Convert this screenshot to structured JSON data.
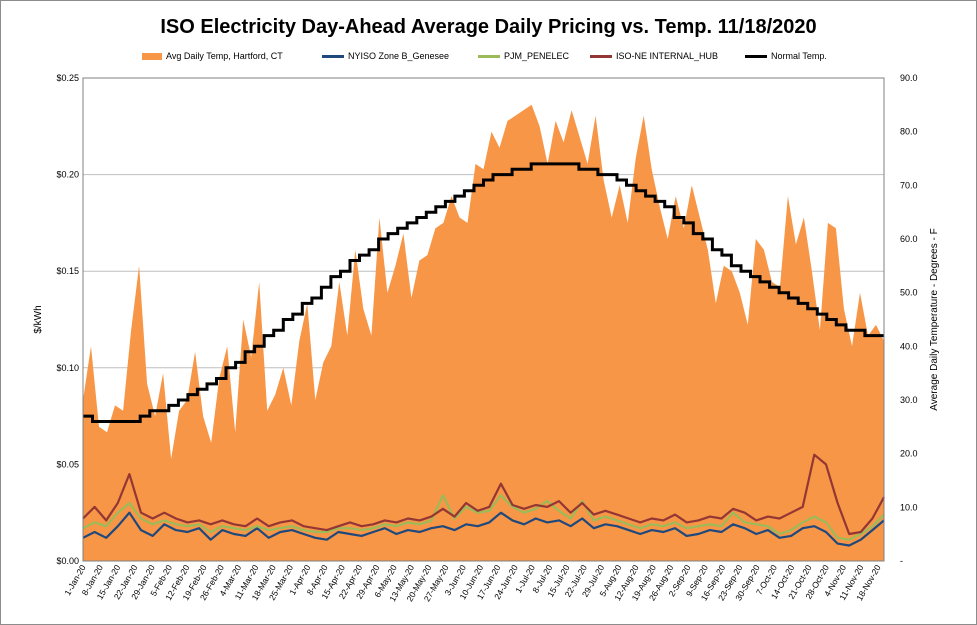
{
  "chart_data": {
    "type": "line",
    "title": "ISO Electricity Day-Ahead Average Daily Pricing vs. Temp. 11/18/2020",
    "ylabel_left": "$/kWh",
    "ylabel_right": "Average Daily Temperature - Degrees - F",
    "ylim_left": [
      0,
      0.25
    ],
    "ylim_right": [
      0,
      90
    ],
    "yticks_left": [
      "$0.00",
      "$0.05",
      "$0.10",
      "$0.15",
      "$0.20",
      "$0.25"
    ],
    "yticks_right": [
      "-",
      "10.0",
      "20.0",
      "30.0",
      "40.0",
      "50.0",
      "60.0",
      "70.0",
      "80.0",
      "90.0"
    ],
    "x_tick_labels": [
      "1-Jan-20",
      "8-Jan-20",
      "15-Jan-20",
      "22-Jan-20",
      "29-Jan-20",
      "5-Feb-20",
      "12-Feb-20",
      "19-Feb-20",
      "26-Feb-20",
      "4-Mar-20",
      "11-Mar-20",
      "18-Mar-20",
      "25-Mar-20",
      "1-Apr-20",
      "8-Apr-20",
      "15-Apr-20",
      "22-Apr-20",
      "29-Apr-20",
      "6-May-20",
      "13-May-20",
      "20-May-20",
      "27-May-20",
      "3-Jun-20",
      "10-Jun-20",
      "17-Jun-20",
      "24-Jun-20",
      "1-Jul-20",
      "8-Jul-20",
      "15-Jul-20",
      "22-Jul-20",
      "29-Jul-20",
      "5-Aug-20",
      "12-Aug-20",
      "19-Aug-20",
      "26-Aug-20",
      "2-Sep-20",
      "9-Sep-20",
      "16-Sep-20",
      "23-Sep-20",
      "30-Sep-20",
      "7-Oct-20",
      "14-Oct-20",
      "21-Oct-20",
      "28-Oct-20",
      "4-Nov-20",
      "11-Nov-20",
      "18-Nov-20"
    ],
    "grid": true,
    "legend_position": "top",
    "series": [
      {
        "name": "Avg Daily Temp, Hartford, CT",
        "kind": "area",
        "axis": "right",
        "color": "#f79646",
        "values": [
          30,
          40,
          25,
          24,
          29,
          28,
          43,
          55,
          33,
          27,
          35,
          19,
          28,
          30,
          39,
          27,
          22,
          34,
          40,
          24,
          45,
          38,
          52,
          28,
          31,
          36,
          29,
          41,
          48,
          30,
          37,
          40,
          52,
          42,
          58,
          47,
          42,
          64,
          50,
          55,
          61,
          49,
          56,
          57,
          62,
          63,
          68,
          64,
          63,
          74,
          73,
          80,
          77,
          82,
          83,
          84,
          85,
          81,
          74,
          82,
          78,
          84,
          79,
          74,
          83,
          71,
          64,
          70,
          63,
          75,
          83,
          73,
          66,
          60,
          68,
          62,
          70,
          64,
          58,
          48,
          55,
          54,
          50,
          44,
          60,
          58,
          52,
          51,
          68,
          59,
          64,
          54,
          43,
          63,
          62,
          47,
          40,
          50,
          42,
          44,
          41
        ]
      },
      {
        "name": "Normal Temp.",
        "kind": "line",
        "axis": "right",
        "color": "#000000",
        "values": [
          27,
          26,
          26,
          26,
          26,
          26,
          27,
          28,
          28,
          29,
          30,
          31,
          32,
          33,
          34,
          36,
          37,
          39,
          40,
          42,
          43,
          45,
          46,
          48,
          49,
          51,
          53,
          54,
          56,
          57,
          58,
          60,
          61,
          62,
          63,
          64,
          65,
          66,
          67,
          68,
          69,
          70,
          71,
          72,
          72,
          73,
          73,
          74,
          74,
          74,
          74,
          74,
          73,
          73,
          72,
          72,
          71,
          70,
          69,
          68,
          67,
          66,
          64,
          63,
          61,
          60,
          58,
          57,
          55,
          54,
          53,
          52,
          51,
          50,
          49,
          48,
          47,
          46,
          45,
          44,
          43,
          43,
          42,
          42
        ]
      },
      {
        "name": "NYISO Zone B_Genesee",
        "kind": "line",
        "axis": "left",
        "color": "#1f497d",
        "values": [
          0.012,
          0.015,
          0.012,
          0.018,
          0.025,
          0.016,
          0.013,
          0.019,
          0.016,
          0.015,
          0.017,
          0.011,
          0.016,
          0.014,
          0.013,
          0.017,
          0.012,
          0.015,
          0.016,
          0.014,
          0.012,
          0.011,
          0.015,
          0.014,
          0.013,
          0.015,
          0.017,
          0.014,
          0.016,
          0.015,
          0.017,
          0.018,
          0.016,
          0.019,
          0.018,
          0.02,
          0.025,
          0.021,
          0.019,
          0.022,
          0.02,
          0.021,
          0.018,
          0.022,
          0.017,
          0.019,
          0.018,
          0.016,
          0.014,
          0.016,
          0.015,
          0.017,
          0.013,
          0.014,
          0.016,
          0.015,
          0.019,
          0.017,
          0.014,
          0.016,
          0.012,
          0.013,
          0.017,
          0.018,
          0.015,
          0.009,
          0.008,
          0.011,
          0.016,
          0.021
        ]
      },
      {
        "name": "PJM_PENELEC",
        "kind": "line",
        "axis": "left",
        "color": "#9bbb59",
        "values": [
          0.017,
          0.02,
          0.018,
          0.025,
          0.03,
          0.022,
          0.019,
          0.021,
          0.019,
          0.018,
          0.019,
          0.015,
          0.018,
          0.017,
          0.016,
          0.018,
          0.016,
          0.017,
          0.018,
          0.016,
          0.015,
          0.015,
          0.017,
          0.017,
          0.016,
          0.017,
          0.019,
          0.018,
          0.02,
          0.019,
          0.021,
          0.034,
          0.022,
          0.028,
          0.025,
          0.026,
          0.034,
          0.028,
          0.025,
          0.027,
          0.031,
          0.026,
          0.022,
          0.031,
          0.021,
          0.023,
          0.021,
          0.019,
          0.017,
          0.019,
          0.018,
          0.02,
          0.017,
          0.018,
          0.019,
          0.018,
          0.025,
          0.02,
          0.019,
          0.018,
          0.014,
          0.016,
          0.02,
          0.023,
          0.02,
          0.012,
          0.011,
          0.014,
          0.018,
          0.024
        ]
      },
      {
        "name": "ISO-NE INTERNAL_HUB",
        "kind": "line",
        "axis": "left",
        "color": "#943634",
        "values": [
          0.022,
          0.028,
          0.021,
          0.03,
          0.045,
          0.025,
          0.022,
          0.025,
          0.022,
          0.02,
          0.021,
          0.019,
          0.021,
          0.019,
          0.018,
          0.022,
          0.018,
          0.02,
          0.021,
          0.018,
          0.017,
          0.016,
          0.018,
          0.02,
          0.018,
          0.019,
          0.021,
          0.02,
          0.022,
          0.021,
          0.023,
          0.027,
          0.023,
          0.03,
          0.026,
          0.028,
          0.04,
          0.029,
          0.027,
          0.029,
          0.028,
          0.031,
          0.025,
          0.03,
          0.024,
          0.026,
          0.024,
          0.022,
          0.02,
          0.022,
          0.021,
          0.024,
          0.02,
          0.021,
          0.023,
          0.022,
          0.027,
          0.025,
          0.021,
          0.023,
          0.022,
          0.025,
          0.028,
          0.055,
          0.05,
          0.03,
          0.014,
          0.015,
          0.022,
          0.033
        ]
      }
    ]
  }
}
